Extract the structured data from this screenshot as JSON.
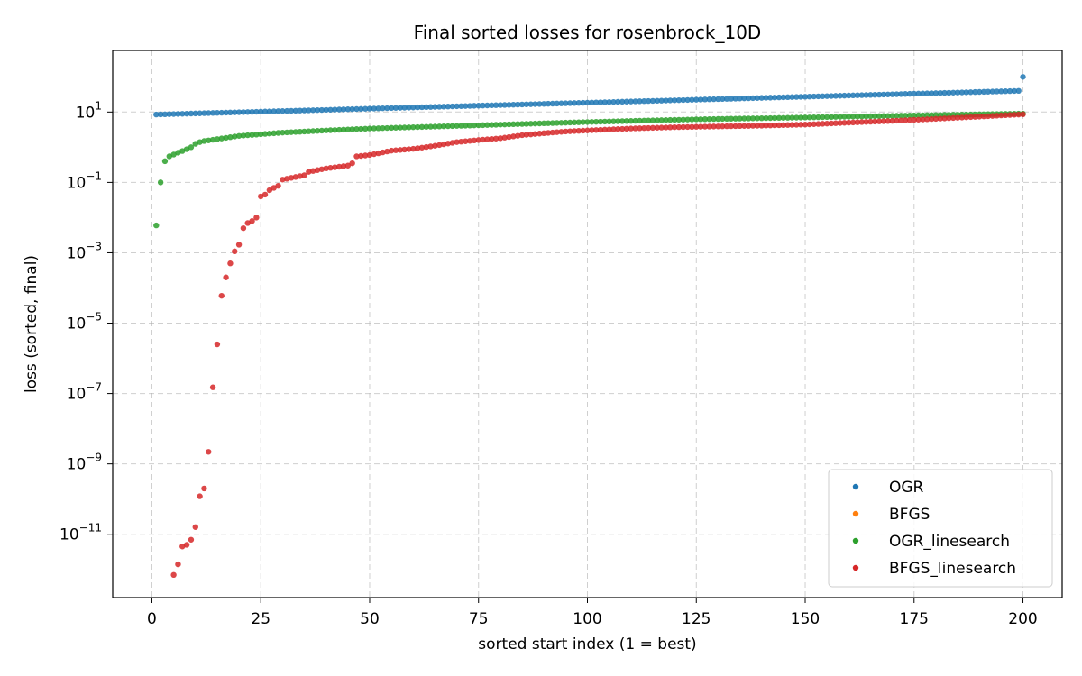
{
  "chart_data": {
    "type": "scatter",
    "title": "Final sorted losses for rosenbrock_10D",
    "xlabel": "sorted start index (1 = best)",
    "ylabel": "loss (sorted, final)",
    "xlim": [
      -9,
      209
    ],
    "ylim_log10": [
      -12.8,
      2.75
    ],
    "y_scale": "log",
    "x_ticks": [
      0,
      25,
      50,
      75,
      100,
      125,
      150,
      175,
      200
    ],
    "y_ticks": [
      {
        "exp": 1,
        "base": "10",
        "sup": "1"
      },
      {
        "exp": -1,
        "base": "10",
        "sup": "−1"
      },
      {
        "exp": -3,
        "base": "10",
        "sup": "−3"
      },
      {
        "exp": -5,
        "base": "10",
        "sup": "−5"
      },
      {
        "exp": -7,
        "base": "10",
        "sup": "−7"
      },
      {
        "exp": -9,
        "base": "10",
        "sup": "−9"
      },
      {
        "exp": -11,
        "base": "10",
        "sup": "−11"
      }
    ],
    "grid": true,
    "legend_position": "bottom-right",
    "series": [
      {
        "name": "OGR",
        "color": "#1f77b4",
        "n": 200,
        "first_loss": 8.5,
        "last_loss": 40,
        "outliers": [
          {
            "x": 200,
            "y": 100
          }
        ]
      },
      {
        "name": "BFGS",
        "color": "#ff7f0e",
        "n": 0
      },
      {
        "name": "OGR_linesearch",
        "color": "#2ca02c",
        "points": [
          [
            1,
            0.006
          ],
          [
            2,
            0.1
          ],
          [
            3,
            0.4
          ],
          [
            4,
            0.55
          ],
          [
            5,
            0.62
          ],
          [
            6,
            0.7
          ],
          [
            7,
            0.78
          ],
          [
            8,
            0.88
          ],
          [
            9,
            1.0
          ],
          [
            10,
            1.25
          ],
          [
            11,
            1.4
          ],
          [
            12,
            1.5
          ],
          [
            15,
            1.7
          ],
          [
            20,
            2.1
          ],
          [
            30,
            2.6
          ],
          [
            40,
            3.0
          ],
          [
            50,
            3.4
          ],
          [
            75,
            4.2
          ],
          [
            100,
            5.2
          ],
          [
            125,
            6.2
          ],
          [
            150,
            7.0
          ],
          [
            175,
            8.0
          ],
          [
            199,
            9.0
          ],
          [
            200,
            9.0
          ]
        ]
      },
      {
        "name": "BFGS_linesearch",
        "color": "#d62728",
        "points": [
          [
            5,
            7e-13
          ],
          [
            6,
            1.4e-12
          ],
          [
            7,
            4.5e-12
          ],
          [
            8,
            5e-12
          ],
          [
            9,
            7e-12
          ],
          [
            10,
            1.6e-11
          ],
          [
            11,
            1.2e-10
          ],
          [
            12,
            2e-10
          ],
          [
            13,
            2.2e-09
          ],
          [
            14,
            1.5e-07
          ],
          [
            15,
            2.5e-06
          ],
          [
            16,
            6e-05
          ],
          [
            17,
            0.0002
          ],
          [
            18,
            0.0005
          ],
          [
            19,
            0.0011
          ],
          [
            20,
            0.0017
          ],
          [
            21,
            0.005
          ],
          [
            22,
            0.007
          ],
          [
            23,
            0.008
          ],
          [
            24,
            0.01
          ],
          [
            25,
            0.04
          ],
          [
            26,
            0.045
          ],
          [
            27,
            0.06
          ],
          [
            28,
            0.07
          ],
          [
            29,
            0.08
          ],
          [
            30,
            0.12
          ],
          [
            35,
            0.16
          ],
          [
            36,
            0.2
          ],
          [
            40,
            0.25
          ],
          [
            45,
            0.3
          ],
          [
            46,
            0.35
          ],
          [
            47,
            0.55
          ],
          [
            50,
            0.6
          ],
          [
            55,
            0.8
          ],
          [
            60,
            0.9
          ],
          [
            65,
            1.1
          ],
          [
            70,
            1.4
          ],
          [
            75,
            1.6
          ],
          [
            80,
            1.8
          ],
          [
            85,
            2.2
          ],
          [
            90,
            2.5
          ],
          [
            95,
            2.8
          ],
          [
            100,
            3.0
          ],
          [
            110,
            3.4
          ],
          [
            120,
            3.7
          ],
          [
            130,
            3.9
          ],
          [
            140,
            4.1
          ],
          [
            150,
            4.4
          ],
          [
            160,
            5.0
          ],
          [
            170,
            5.6
          ],
          [
            180,
            6.4
          ],
          [
            190,
            7.4
          ],
          [
            195,
            8.0
          ],
          [
            200,
            8.6
          ]
        ]
      }
    ]
  }
}
